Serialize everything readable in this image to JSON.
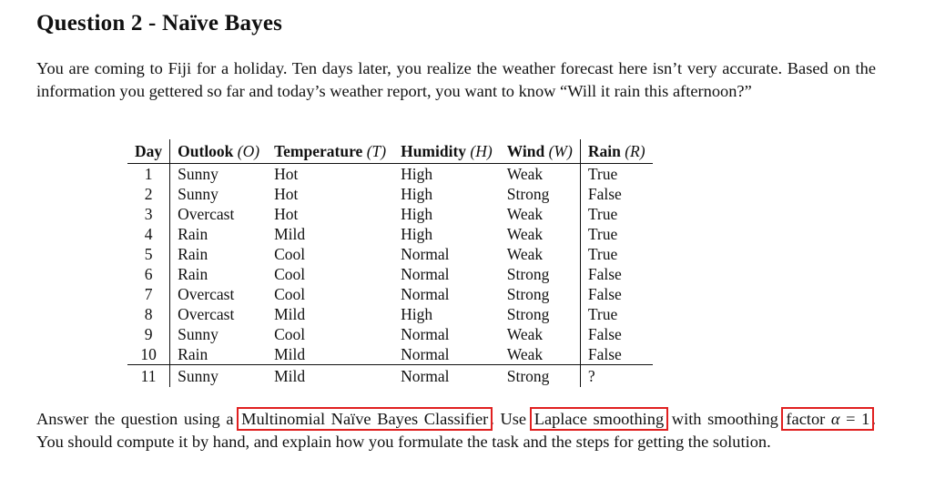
{
  "title": "Question 2 - Naïve Bayes",
  "intro": "You are coming to Fiji for a holiday. Ten days later, you realize the weather forecast here isn’t very accurate. Based on the information you gettered so far and today’s weather report, you want to know “Will it rain this afternoon?”",
  "table": {
    "headers": [
      {
        "label": "Day",
        "var": ""
      },
      {
        "label": "Outlook",
        "var": "(O)"
      },
      {
        "label": "Temperature",
        "var": "(T)"
      },
      {
        "label": "Humidity",
        "var": "(H)"
      },
      {
        "label": "Wind",
        "var": "(W)"
      },
      {
        "label": "Rain",
        "var": "(R)"
      }
    ],
    "rows": [
      [
        "1",
        "Sunny",
        "Hot",
        "High",
        "Weak",
        "True"
      ],
      [
        "2",
        "Sunny",
        "Hot",
        "High",
        "Strong",
        "False"
      ],
      [
        "3",
        "Overcast",
        "Hot",
        "High",
        "Weak",
        "True"
      ],
      [
        "4",
        "Rain",
        "Mild",
        "High",
        "Weak",
        "True"
      ],
      [
        "5",
        "Rain",
        "Cool",
        "Normal",
        "Weak",
        "True"
      ],
      [
        "6",
        "Rain",
        "Cool",
        "Normal",
        "Strong",
        "False"
      ],
      [
        "7",
        "Overcast",
        "Cool",
        "Normal",
        "Strong",
        "False"
      ],
      [
        "8",
        "Overcast",
        "Mild",
        "High",
        "Strong",
        "True"
      ],
      [
        "9",
        "Sunny",
        "Cool",
        "Normal",
        "Weak",
        "False"
      ],
      [
        "10",
        "Rain",
        "Mild",
        "Normal",
        "Weak",
        "False"
      ]
    ],
    "query_row": [
      "11",
      "Sunny",
      "Mild",
      "Normal",
      "Strong",
      "?"
    ]
  },
  "answer": {
    "part1": "Answer the question using a ",
    "hl1": "Multinomial Naïve Bayes Classifier",
    "part2": ". Use ",
    "hl2": "Laplace smoothing",
    "part3": " with smoothing ",
    "hl3_text": "factor ",
    "hl3_var": "α",
    "hl3_eq": " = 1",
    "part4": ". You should compute it by hand, and explain how you formulate the task and the steps for getting the solution."
  },
  "colors": {
    "highlight_box": "#e02020",
    "text": "#111111"
  }
}
